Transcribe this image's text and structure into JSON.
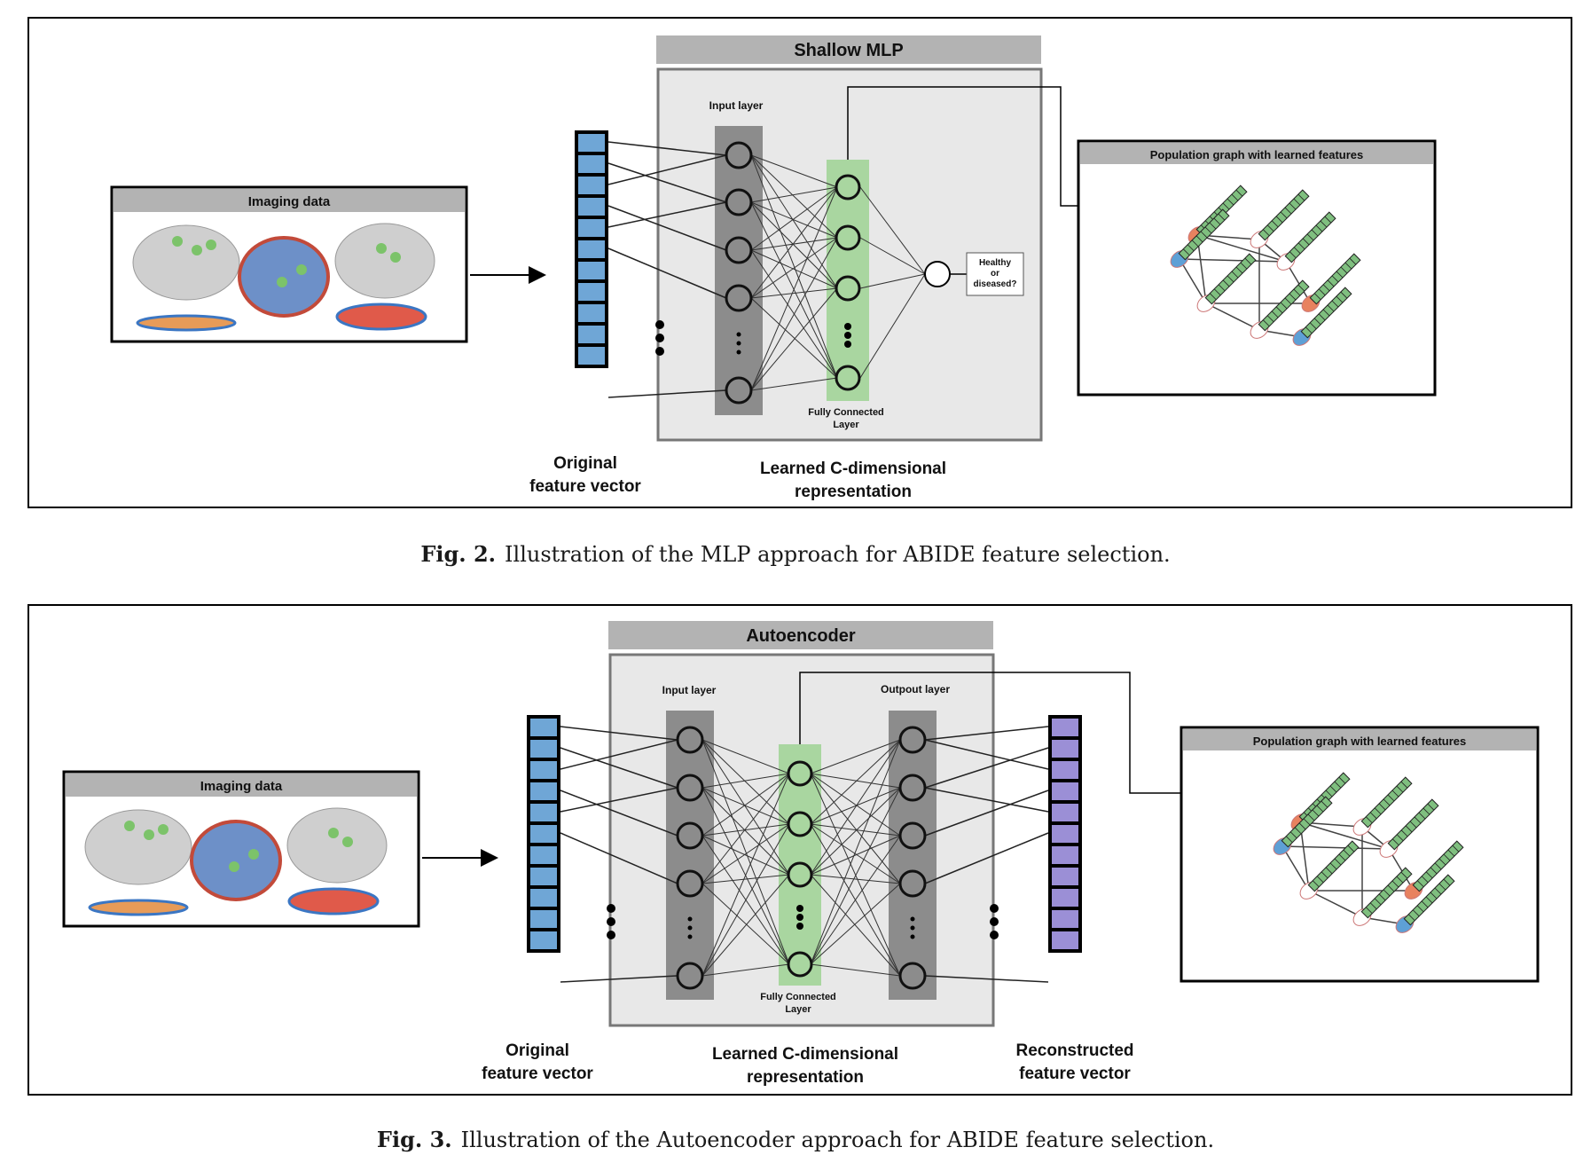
{
  "fig2": {
    "title": "Shallow MLP",
    "imaging_title": "Imaging data",
    "input_layer": "Input layer",
    "fc_layer_line1": "Fully Connected",
    "fc_layer_line2": "Layer",
    "output_line1": "Healthy",
    "output_line2": "or",
    "output_line3": "diseased?",
    "population_title": "Population graph with learned features",
    "orig_line1": "Original",
    "orig_line2": "feature vector",
    "learned_line1": "Learned C-dimensional",
    "learned_line2": "representation",
    "caption_label": "Fig. 2.",
    "caption_text": "Illustration of the MLP approach for ABIDE feature selection."
  },
  "fig3": {
    "title": "Autoencoder",
    "imaging_title": "Imaging data",
    "input_layer": "Input layer",
    "output_layer": "Outpout layer",
    "fc_layer_line1": "Fully Connected",
    "fc_layer_line2": "Layer",
    "population_title": "Population graph with learned features",
    "orig_line1": "Original",
    "orig_line2": "feature vector",
    "learned_line1": "Learned C-dimensional",
    "learned_line2": "representation",
    "recon_line1": "Reconstructed",
    "recon_line2": "feature vector",
    "caption_label": "Fig. 3.",
    "caption_text": "Illustration of the Autoencoder approach for ABIDE feature selection."
  },
  "colors": {
    "feature_blue": "#6fa6d6",
    "feature_purple": "#9b8fd6",
    "layer_gray": "#8c8c8c",
    "fc_green": "#a9d6a0",
    "panel_gray": "#e8e8e8",
    "title_gray": "#b3b3b3",
    "node_orange": "#e8825f",
    "node_blue": "#5ea0d6",
    "bar_green": "#7fbf7f"
  }
}
